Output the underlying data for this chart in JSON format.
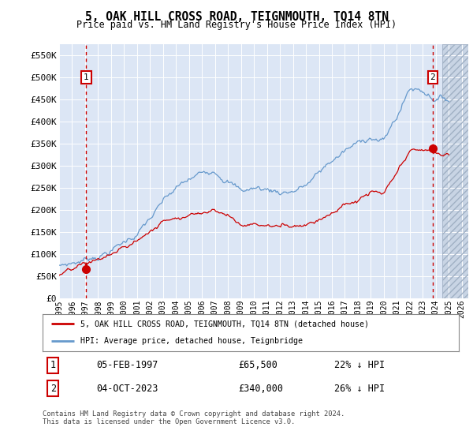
{
  "title": "5, OAK HILL CROSS ROAD, TEIGNMOUTH, TQ14 8TN",
  "subtitle": "Price paid vs. HM Land Registry's House Price Index (HPI)",
  "ylabel_ticks": [
    "£0",
    "£50K",
    "£100K",
    "£150K",
    "£200K",
    "£250K",
    "£300K",
    "£350K",
    "£400K",
    "£450K",
    "£500K",
    "£550K"
  ],
  "ytick_values": [
    0,
    50000,
    100000,
    150000,
    200000,
    250000,
    300000,
    350000,
    400000,
    450000,
    500000,
    550000
  ],
  "ylim": [
    0,
    575000
  ],
  "xlim_start": 1995.0,
  "xlim_end": 2026.5,
  "hpi_color": "#6699cc",
  "property_color": "#cc0000",
  "background_color": "#dce6f5",
  "grid_color": "#b8c8dc",
  "sale1_x": 1997.09,
  "sale1_y": 65500,
  "sale2_x": 2023.75,
  "sale2_y": 340000,
  "legend_property": "5, OAK HILL CROSS ROAD, TEIGNMOUTH, TQ14 8TN (detached house)",
  "legend_hpi": "HPI: Average price, detached house, Teignbridge",
  "annotation1_date": "05-FEB-1997",
  "annotation1_price": "£65,500",
  "annotation1_hpi": "22% ↓ HPI",
  "annotation2_date": "04-OCT-2023",
  "annotation2_price": "£340,000",
  "annotation2_hpi": "26% ↓ HPI",
  "footer": "Contains HM Land Registry data © Crown copyright and database right 2024.\nThis data is licensed under the Open Government Licence v3.0.",
  "xtick_years": [
    1995,
    1996,
    1997,
    1998,
    1999,
    2000,
    2001,
    2002,
    2003,
    2004,
    2005,
    2006,
    2007,
    2008,
    2009,
    2010,
    2011,
    2012,
    2013,
    2014,
    2015,
    2016,
    2017,
    2018,
    2019,
    2020,
    2021,
    2022,
    2023,
    2024,
    2025,
    2026
  ],
  "hpi_base_years": [
    1995,
    1996,
    1997,
    1998,
    1999,
    2000,
    2001,
    2002,
    2003,
    2004,
    2005,
    2006,
    2007,
    2008,
    2009,
    2010,
    2011,
    2012,
    2013,
    2014,
    2015,
    2016,
    2017,
    2018,
    2019,
    2020,
    2021,
    2022,
    2023,
    2024,
    2025
  ],
  "hpi_base_vals": [
    75000,
    82000,
    90000,
    103000,
    117000,
    133000,
    155000,
    185000,
    215000,
    238000,
    252000,
    262000,
    280000,
    268000,
    240000,
    246000,
    242000,
    238000,
    244000,
    256000,
    278000,
    305000,
    325000,
    336000,
    358000,
    345000,
    398000,
    462000,
    460000,
    448000,
    445000
  ],
  "prop_base_years": [
    1995,
    1996,
    1997,
    1998,
    1999,
    2000,
    2001,
    2002,
    2003,
    2004,
    2005,
    2006,
    2007,
    2008,
    2009,
    2010,
    2011,
    2012,
    2013,
    2014,
    2015,
    2016,
    2017,
    2018,
    2019,
    2020,
    2021,
    2022,
    2023,
    2024,
    2025
  ],
  "prop_base_vals": [
    52000,
    57000,
    65500,
    74000,
    85000,
    97000,
    113000,
    136000,
    158000,
    176000,
    185000,
    194000,
    208000,
    196000,
    175000,
    179000,
    176000,
    173000,
    178000,
    187000,
    203000,
    224000,
    240000,
    248000,
    265000,
    255000,
    295000,
    335000,
    340000,
    328000,
    325000
  ],
  "hpi_noise_seed": 7,
  "prop_noise_seed": 13,
  "hatch_start": 2024.5
}
